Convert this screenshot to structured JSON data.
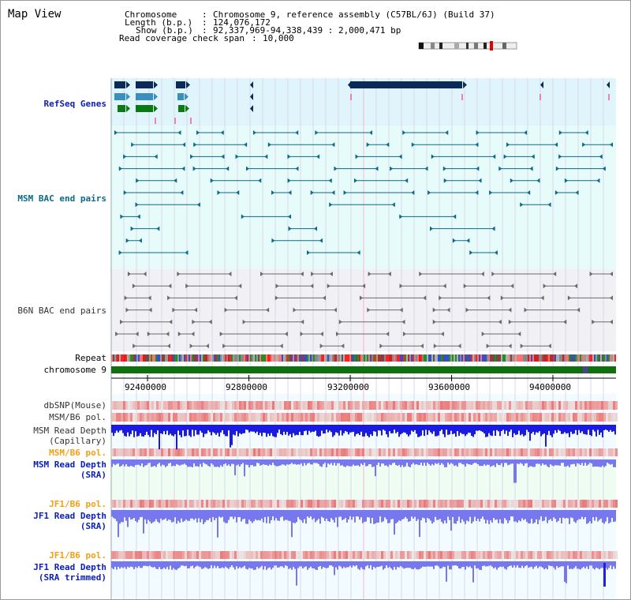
{
  "title": "Map View",
  "info": {
    "chromosome_label": "Chromosome",
    "chromosome_value": "Chromosome 9, reference assembly (C57BL/6J) (Build 37)",
    "length_label": "Length (b.p.)",
    "length_value": "124,076,172",
    "show_label": "Show (b.p.)",
    "show_value": "92,337,969-94,338,439 : 2,000,471 bp",
    "span_label": "Read coverage check span",
    "span_value": "10,000"
  },
  "tracks": {
    "refseq": "RefSeq Genes",
    "msm_bac": "MSM BAC end pairs",
    "b6n_bac": "B6N BAC end pairs",
    "repeat": "Repeat",
    "chromosome": "chromosome 9",
    "dbsnp": "dbSNP(Mouse)",
    "msm_b6_pol": "MSM/B6 pol.",
    "msm_depth_cap_1": "MSM Read Depth",
    "msm_depth_cap_2": "(Capillary)",
    "msm_b6_pol_2": "MSM/B6 pol.",
    "msm_depth_sra_1": "MSM Read Depth",
    "msm_depth_sra_2": "(SRA)",
    "jf1_b6_pol": "JF1/B6 pol.",
    "jf1_depth_sra_1": "JF1 Read Depth",
    "jf1_depth_sra_2": "(SRA)",
    "jf1_b6_pol_2": "JF1/B6 pol.",
    "jf1_depth_trim_1": "JF1 Read Depth",
    "jf1_depth_trim_2": "(SRA trimmed)"
  },
  "axis": {
    "ticks": [
      "92400000",
      "92800000",
      "93200000",
      "93600000",
      "94000000"
    ]
  },
  "colors": {
    "refseq_bg": "#dff4fb",
    "msm_bg": "#e8fbfb",
    "b6n_bg": "#f1f1f5",
    "chromosome": "#107010",
    "gene_dark": "#0b2a5a",
    "gene_mid": "#3a8fbf",
    "gene_green": "#0b7a12",
    "msm_feature": "#0a6a88",
    "b6n_feature": "#6a6a6a",
    "depth_dark": "#1a1ae0",
    "depth_light": "#7777ee",
    "pol_red": "#e63a3a"
  }
}
